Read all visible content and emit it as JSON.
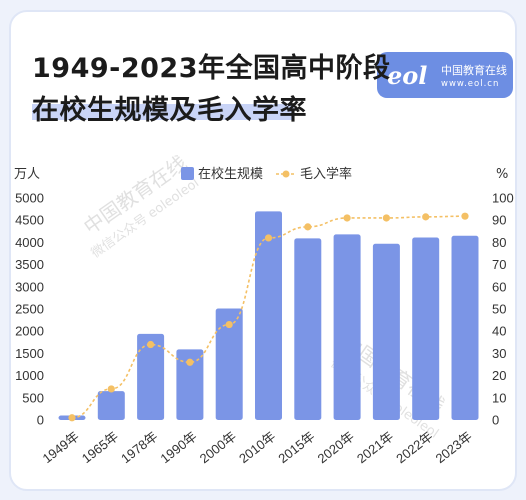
{
  "header": {
    "title_line1": "1949-2023年全国高中阶段",
    "title_line2": "在校生规模及毛入学率"
  },
  "logo": {
    "mark": "eol",
    "name": "中国教育在线",
    "url": "www.eol.cn"
  },
  "watermark": {
    "name": "中国教育在线",
    "account": "微信公众号 eoleoleol"
  },
  "colors": {
    "bar": "#7b95e6",
    "line": "#f4c065",
    "title_highlight": "#c9d4f7",
    "logo_badge": "#6d8ee3"
  },
  "chart_data": {
    "type": "bar",
    "categories": [
      "1949年",
      "1965年",
      "1978年",
      "1990年",
      "2000年",
      "2010年",
      "2015年",
      "2020年",
      "2021年",
      "2022年",
      "2023年"
    ],
    "series": [
      {
        "name": "在校生规模",
        "type": "bar",
        "axis": "left",
        "values": [
          100,
          650,
          1940,
          1590,
          2510,
          4700,
          4090,
          4180,
          3970,
          4110,
          4150
        ]
      },
      {
        "name": "毛入学率",
        "type": "line",
        "axis": "right",
        "values": [
          1,
          14,
          34,
          26,
          43,
          82,
          87,
          91,
          91,
          91.5,
          91.8
        ]
      }
    ],
    "ylabel": "万人",
    "ylabel_right": "%",
    "ylim": [
      0,
      5000
    ],
    "ylim_right": [
      0,
      100
    ],
    "yticks": [
      0,
      500,
      1000,
      1500,
      2000,
      2500,
      3000,
      3500,
      4000,
      4500,
      5000
    ],
    "yticks_right": [
      0,
      10,
      20,
      30,
      40,
      50,
      60,
      70,
      80,
      90,
      100
    ],
    "legend_position": "top",
    "grid": false
  }
}
